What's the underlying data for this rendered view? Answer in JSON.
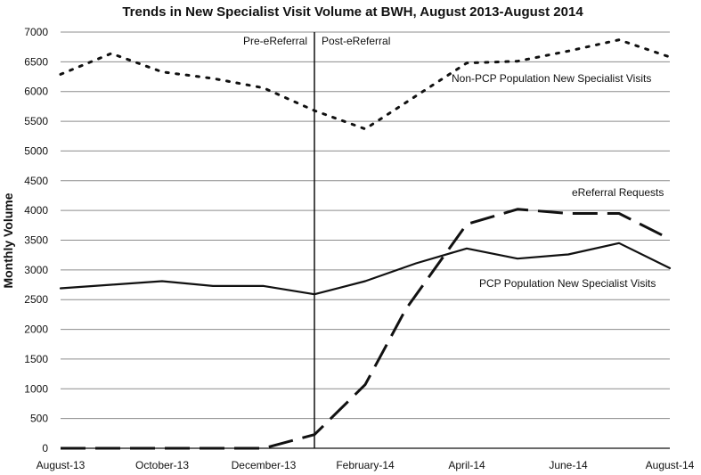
{
  "chart_data": {
    "type": "line",
    "title": "Trends in New Specialist Visit Volume at BWH, August 2013-August 2014",
    "xlabel": "",
    "ylabel": "Monthly Volume",
    "ylim": [
      0,
      7000
    ],
    "ytick_step": 500,
    "grid": true,
    "x": [
      "August-13",
      "September-13",
      "October-13",
      "November-13",
      "December-13",
      "January-14",
      "February-14",
      "March-14",
      "April-14",
      "May-14",
      "June-14",
      "July-14",
      "August-14"
    ],
    "xtick_labels": [
      "August-13",
      "October-13",
      "December-13",
      "February-14",
      "April-14",
      "June-14",
      "August-14"
    ],
    "ytick_labels": [
      "0",
      "500",
      "1000",
      "1500",
      "2000",
      "2500",
      "3000",
      "3500",
      "4000",
      "4500",
      "5000",
      "5500",
      "6000",
      "6500",
      "7000"
    ],
    "series": [
      {
        "name": "Non-PCP Population New Specialist Visits",
        "style": "dotted",
        "values": [
          6290,
          6640,
          6330,
          6220,
          6060,
          5680,
          5370,
          6480,
          6510,
          6680,
          6870,
          6580,
          6580
        ],
        "value_positions": [
          0,
          1,
          2,
          3,
          4,
          5,
          6,
          8,
          9,
          10,
          11,
          12,
          12
        ]
      },
      {
        "name": "eReferral Requests",
        "style": "dashed",
        "values": [
          0,
          0,
          0,
          0,
          0,
          230,
          1070,
          2340,
          3770,
          4020,
          3950,
          3950,
          3520
        ],
        "value_positions": [
          0,
          1,
          2,
          3,
          4,
          5,
          6,
          6.8,
          8,
          9,
          10,
          11,
          12
        ]
      },
      {
        "name": "PCP Population New Specialist Visits",
        "style": "solid",
        "values": [
          2690,
          2750,
          2810,
          2730,
          2730,
          2590,
          2810,
          3110,
          3360,
          3190,
          3260,
          3450,
          3030
        ],
        "value_positions": [
          0,
          1,
          2,
          3,
          4,
          5,
          6,
          7,
          8,
          9,
          10,
          11,
          12
        ]
      }
    ],
    "annotations": {
      "divider_position": 5,
      "pre_label": "Pre-eReferral",
      "post_label": "Post-eReferral"
    }
  }
}
